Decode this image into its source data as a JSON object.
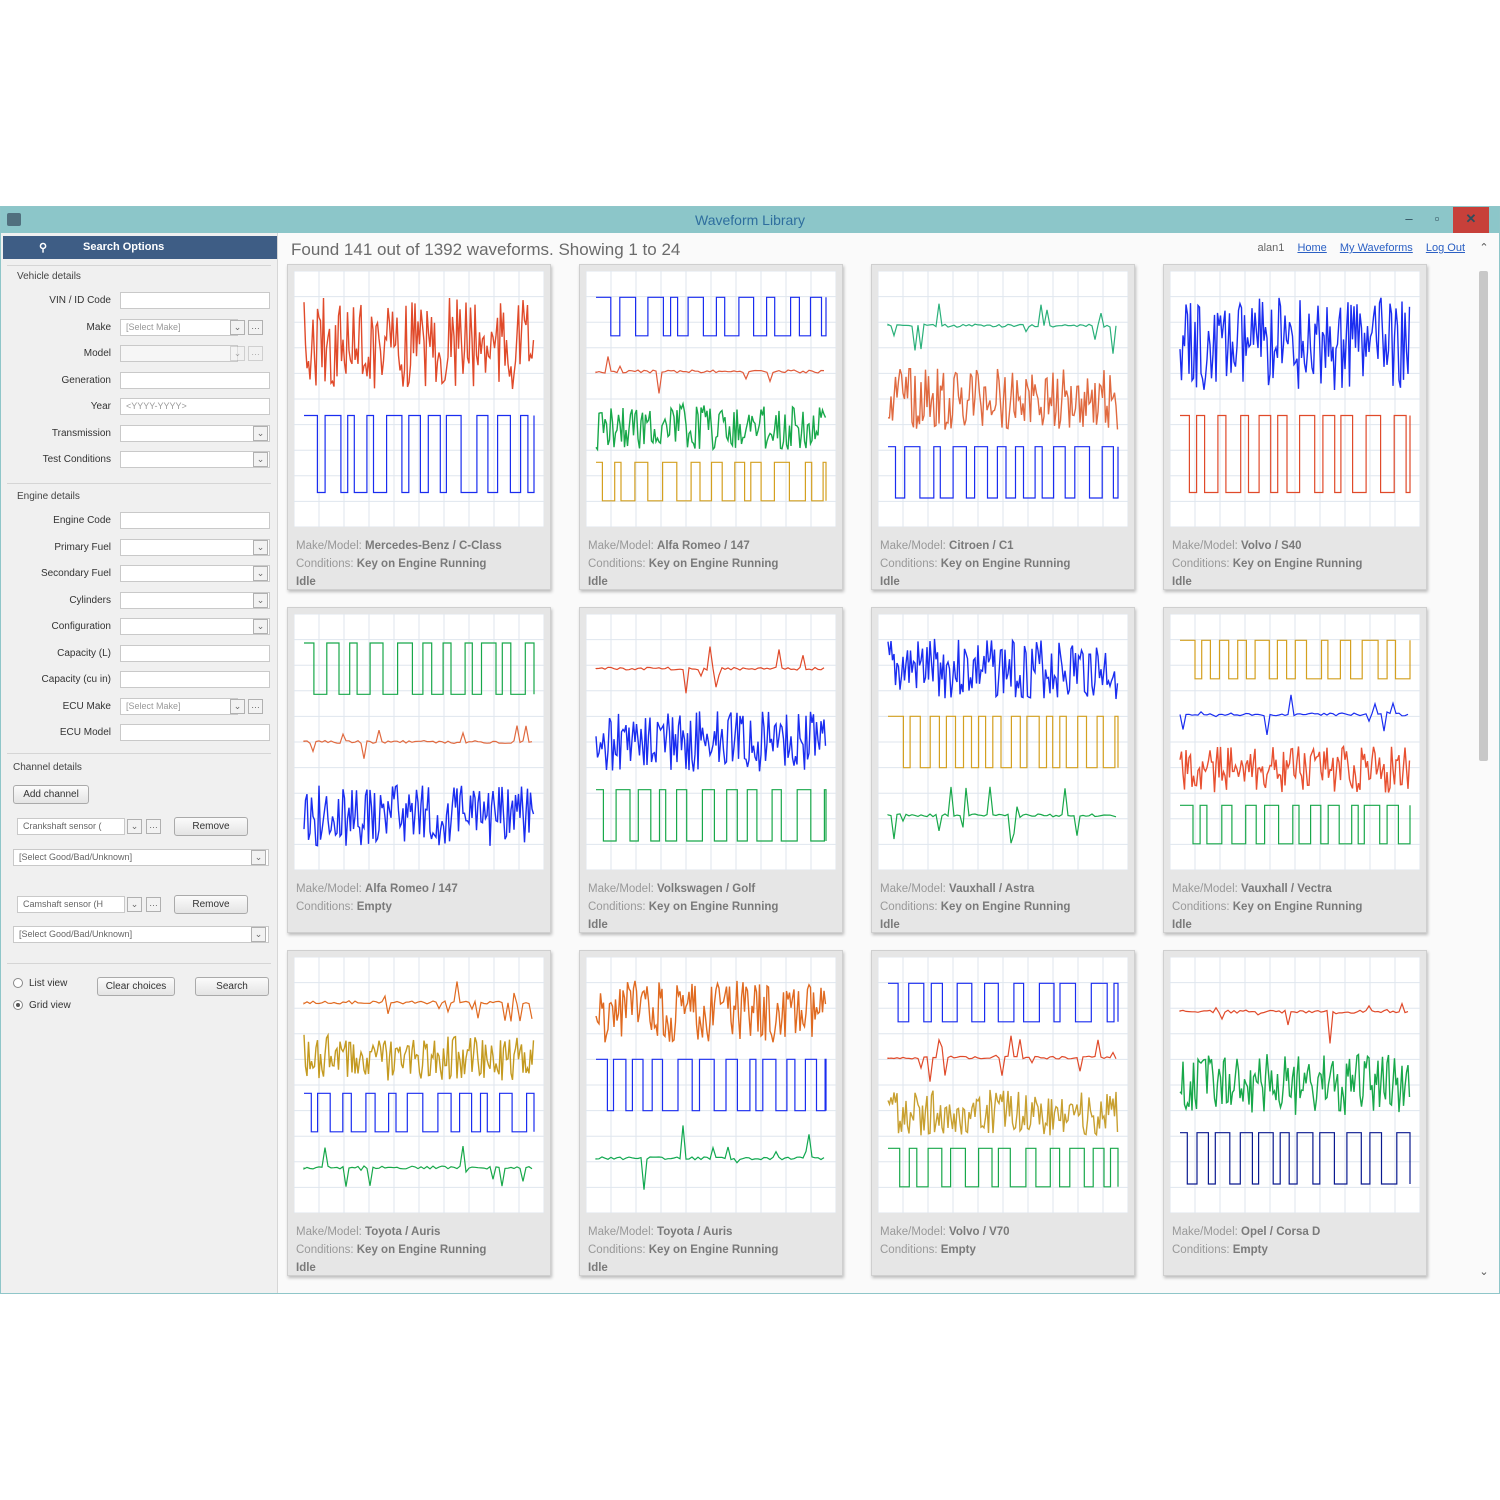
{
  "window": {
    "title": "Waveform Library"
  },
  "sidebar": {
    "header": "Search Options",
    "vehicle": {
      "title": "Vehicle details",
      "vin_label": "VIN / ID Code",
      "make_label": "Make",
      "make_placeholder": "[Select Make]",
      "model_label": "Model",
      "generation_label": "Generation",
      "year_label": "Year",
      "year_placeholder": "<YYYY-YYYY>",
      "transmission_label": "Transmission",
      "test_conditions_label": "Test Conditions"
    },
    "engine": {
      "title": "Engine details",
      "engine_code_label": "Engine Code",
      "primary_fuel_label": "Primary Fuel",
      "secondary_fuel_label": "Secondary Fuel",
      "cylinders_label": "Cylinders",
      "configuration_label": "Configuration",
      "capacity_l_label": "Capacity (L)",
      "capacity_cuin_label": "Capacity (cu in)",
      "ecu_make_label": "ECU Make",
      "ecu_make_placeholder": "[Select Make]",
      "ecu_model_label": "ECU Model"
    },
    "channel": {
      "title": "Channel details",
      "add_label": "Add channel",
      "channels": [
        {
          "value": "Crankshaft sensor (",
          "remove": "Remove",
          "quality": "[Select Good/Bad/Unknown]"
        },
        {
          "value": "Camshaft sensor (H",
          "remove": "Remove",
          "quality": "[Select Good/Bad/Unknown]"
        }
      ]
    },
    "view": {
      "list": "List view",
      "grid": "Grid view",
      "selected": "grid"
    },
    "clear_label": "Clear choices",
    "search_label": "Search"
  },
  "main": {
    "found_text": "Found 141 out of 1392 waveforms. Showing 1 to 24",
    "user": "alan1",
    "links": [
      "Home",
      "My Waveforms",
      "Log Out"
    ],
    "make_prefix": "Make/Model:",
    "cond_prefix": "Conditions:",
    "cards": [
      {
        "make": "Mercedes-Benz / C-Class",
        "conditions": "Key on Engine Running",
        "extra": "Idle",
        "colors": [
          "#e04a2a",
          "#1a2df0"
        ]
      },
      {
        "make": "Alfa Romeo / 147",
        "conditions": "Key on Engine Running",
        "extra": "Idle",
        "colors": [
          "#1a2df0",
          "#e05a3a",
          "#18a84a",
          "#d4a020"
        ]
      },
      {
        "make": "Citroen / C1",
        "conditions": "Key on Engine Running",
        "extra": "Idle",
        "colors": [
          "#2ab07a",
          "#e06a40",
          "#1a2df0"
        ]
      },
      {
        "make": "Volvo / S40",
        "conditions": "Key on Engine Running",
        "extra": "Idle",
        "colors": [
          "#1a2df0",
          "#e04a2a"
        ]
      },
      {
        "make": "Alfa Romeo / 147",
        "conditions": "Empty",
        "extra": "",
        "colors": [
          "#18a84a",
          "#e06a40",
          "#1a2df0"
        ]
      },
      {
        "make": "Volkswagen / Golf",
        "conditions": "Key on Engine Running",
        "extra": "Idle",
        "colors": [
          "#e04a2a",
          "#1a2df0",
          "#18a84a"
        ]
      },
      {
        "make": "Vauxhall / Astra",
        "conditions": "Key on Engine Running",
        "extra": "Idle",
        "colors": [
          "#1a2df0",
          "#d4a020",
          "#18a84a"
        ]
      },
      {
        "make": "Vauxhall / Vectra",
        "conditions": "Key on Engine Running",
        "extra": "Idle",
        "colors": [
          "#d4a020",
          "#1a2df0",
          "#e85030",
          "#18a84a"
        ]
      },
      {
        "make": "Toyota / Auris",
        "conditions": "Key on Engine Running",
        "extra": "Idle",
        "colors": [
          "#e06a20",
          "#c49a20",
          "#1a2df0",
          "#18a84a"
        ]
      },
      {
        "make": "Toyota / Auris",
        "conditions": "Key on Engine Running",
        "extra": "Idle",
        "colors": [
          "#e06a20",
          "#1a2df0",
          "#10a850"
        ]
      },
      {
        "make": "Volvo / V70",
        "conditions": "Empty",
        "extra": "",
        "colors": [
          "#1a2df0",
          "#e04a2a",
          "#c8a030",
          "#18a84a"
        ]
      },
      {
        "make": "Opel / Corsa D",
        "conditions": "Empty",
        "extra": "",
        "colors": [
          "#e04a2a",
          "#18a84a",
          "#0a1a90"
        ]
      }
    ]
  },
  "icons": {
    "app": "app-icon",
    "pin": "pin-icon",
    "dropdown": "chevron-down-icon",
    "more": "ellipsis-icon",
    "scroll_up": "chevron-up-icon",
    "scroll_down": "chevron-down-icon"
  }
}
